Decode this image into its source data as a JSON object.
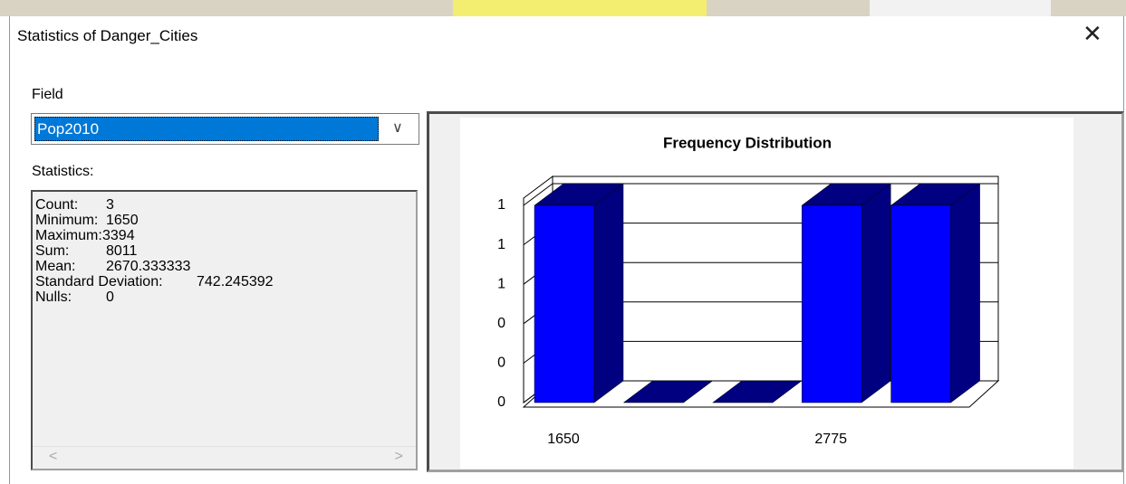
{
  "window": {
    "title": "Statistics of Danger_Cities"
  },
  "field": {
    "label": "Field",
    "selected": "Pop2010"
  },
  "statistics": {
    "label": "Statistics:",
    "items": [
      {
        "name": "Count:",
        "value": 3
      },
      {
        "name": "Minimum:",
        "value": 1650
      },
      {
        "name": "Maximum:",
        "value": 3394
      },
      {
        "name": "Sum:",
        "value": 8011
      },
      {
        "name": "Mean:",
        "value": 2670.333333
      },
      {
        "name": "Standard Deviation:",
        "value": 742.245392
      },
      {
        "name": "Nulls:",
        "value": 0
      }
    ]
  },
  "chart_data": {
    "type": "bar",
    "title": "Frequency Distribution",
    "categories": [
      "1650",
      null,
      null,
      "2775",
      null
    ],
    "values": [
      1,
      0,
      0,
      1,
      1
    ],
    "color": "#0000ff",
    "side_color": "#000080",
    "ylim": [
      0,
      1
    ],
    "yticks": [
      0,
      {
        "value": 0.2,
        "label": "0"
      },
      {
        "value": 0.4,
        "label": "0"
      },
      {
        "value": 0.6,
        "label": "1"
      },
      {
        "value": 0.8,
        "label": "1"
      },
      1
    ],
    "grid": true
  }
}
